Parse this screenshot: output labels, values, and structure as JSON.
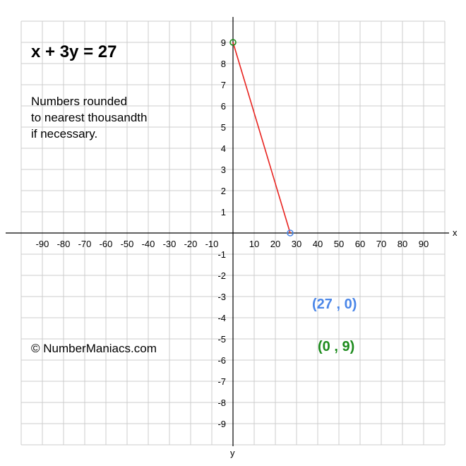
{
  "equation": "x + 3y = 27",
  "note_lines": [
    "Numbers rounded",
    "to nearest thousandth",
    "if necessary."
  ],
  "copyright": "© NumberManiacs.com",
  "point_labels": {
    "x_intercept": "(27 , 0)",
    "y_intercept": "(0 , 9)"
  },
  "colors": {
    "line": "#e8231f",
    "x_intercept": "#4a86e8",
    "y_intercept": "#1e8c1e",
    "grid": "#cccccc",
    "axis": "#000000"
  },
  "chart_data": {
    "type": "line",
    "title": "x + 3y = 27",
    "xlabel": "x",
    "ylabel": "y",
    "xlim": [
      -100,
      100
    ],
    "ylim": [
      -10,
      10
    ],
    "grid": true,
    "x_ticks": [
      -90,
      -80,
      -70,
      -60,
      -50,
      -40,
      -30,
      -20,
      -10,
      10,
      20,
      30,
      40,
      50,
      60,
      70,
      80,
      90
    ],
    "y_ticks": [
      -9,
      -8,
      -7,
      -6,
      -5,
      -4,
      -3,
      -2,
      -1,
      1,
      2,
      3,
      4,
      5,
      6,
      7,
      8,
      9
    ],
    "series": [
      {
        "x": [
          0,
          27
        ],
        "y": [
          9,
          0
        ]
      }
    ],
    "points": [
      {
        "x": 27,
        "y": 0
      },
      {
        "x": 0,
        "y": 9
      }
    ]
  }
}
